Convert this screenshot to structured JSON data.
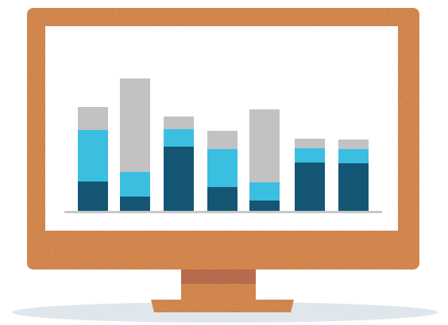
{
  "colors": {
    "background": "#ffffff",
    "floor_shadow": "#dfe7ec",
    "cork_frame": "#d98f55",
    "cork_speckle_dark": "#b86a33",
    "cork_speckle_light": "#eab07c",
    "screen": "#ffffff",
    "neck": "#b86a4e",
    "baseline": "#c8c8c8",
    "series_bottom": "#155675",
    "series_middle": "#3bbfe0",
    "series_top": "#c2c2c2"
  },
  "chart_data": {
    "type": "bar",
    "stacked": true,
    "categories": [
      "",
      "",
      "",
      "",
      "",
      "",
      ""
    ],
    "series": [
      {
        "color": "#155675",
        "values": [
          37,
          18,
          81,
          30,
          13,
          61,
          60
        ]
      },
      {
        "color": "#3bbfe0",
        "values": [
          65,
          31,
          22,
          48,
          23,
          18,
          18
        ]
      },
      {
        "color": "#c2c2c2",
        "values": [
          29,
          118,
          16,
          23,
          92,
          12,
          12
        ]
      }
    ],
    "ylim": [
      0,
      170
    ],
    "title": "",
    "xlabel": "",
    "ylabel": "",
    "grid": false,
    "axis_labels_shown": false,
    "legend_shown": false
  }
}
